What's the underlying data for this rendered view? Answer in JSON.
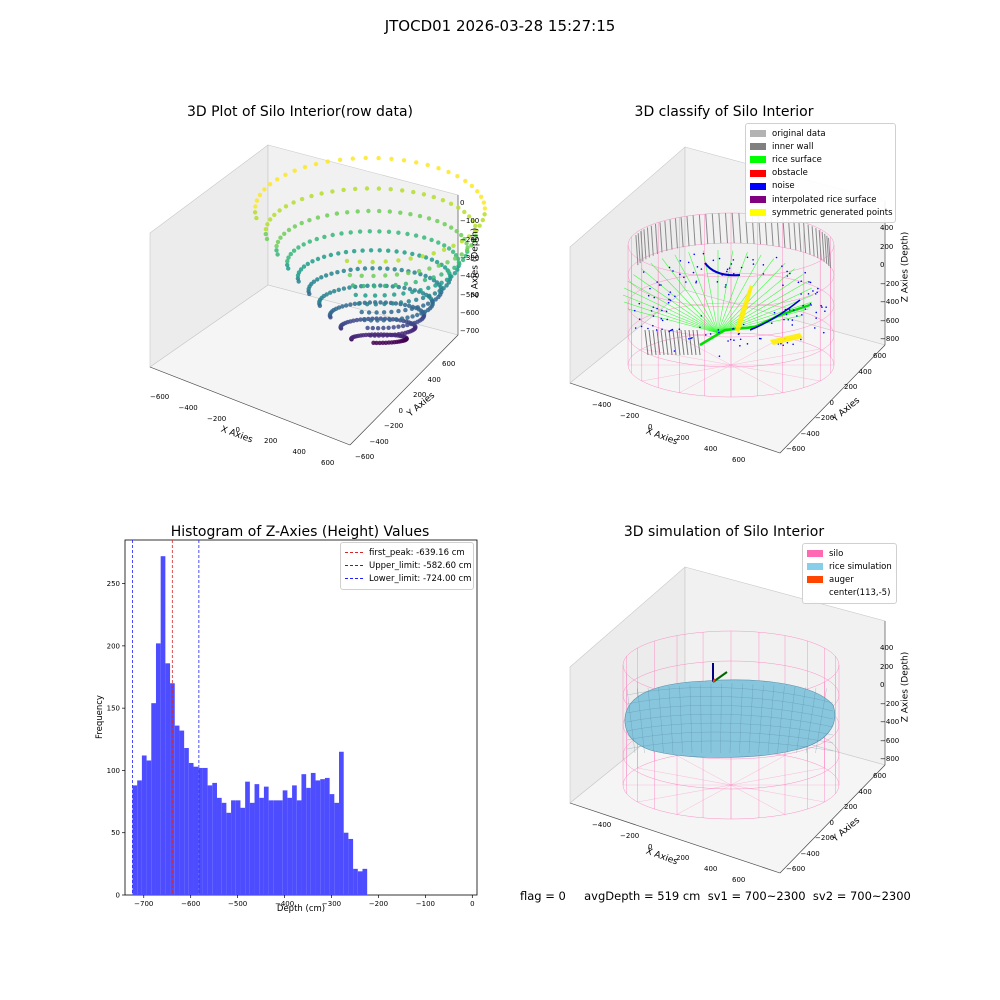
{
  "suptitle": "JTOCD01 2026-03-28 15:27:15",
  "colors": {
    "hist_bar": "#4d4dff",
    "first_peak": "#d62728",
    "limits": "#1f1fff",
    "silo_wire": "#ff77bb",
    "rice": "#87c6dd"
  },
  "plot1": {
    "title": "3D Plot of Silo Interior(row data)",
    "xlabel": "X Axies",
    "ylabel": "Y Axies",
    "zlabel": "Z Axies (Depth)",
    "xticks": [
      "−600",
      "−400",
      "−200",
      "0",
      "200",
      "400",
      "600"
    ],
    "yticks": [
      "600",
      "400",
      "200",
      "0",
      "−200",
      "−400",
      "−600"
    ],
    "zticks": [
      "0",
      "−100",
      "−200",
      "−300",
      "−400",
      "−500",
      "−600",
      "−700"
    ]
  },
  "plot2": {
    "title": "3D classify of Silo Interior",
    "xlabel": "X Axies",
    "ylabel": "Y Axies",
    "zlabel": "Z Axies (Depth)",
    "xticks": [
      "−400",
      "−200",
      "0",
      "200",
      "400",
      "600"
    ],
    "yticks": [
      "600",
      "400",
      "200",
      "0",
      "−200",
      "−400",
      "−600"
    ],
    "zticks": [
      "400",
      "200",
      "0",
      "−200",
      "−400",
      "−600",
      "−800"
    ],
    "legend": [
      {
        "label": "original data",
        "color": "#b3b3b3"
      },
      {
        "label": "inner wall",
        "color": "#808080"
      },
      {
        "label": "rice surface",
        "color": "#00ff00"
      },
      {
        "label": "obstacle",
        "color": "#ff0000"
      },
      {
        "label": "noise",
        "color": "#0000ff"
      },
      {
        "label": "interpolated rice surface",
        "color": "#800080"
      },
      {
        "label": "symmetric generated points",
        "color": "#ffff00"
      }
    ]
  },
  "plot4": {
    "title": "3D simulation of Silo Interior",
    "xlabel": "X Axies",
    "ylabel": "Y Axies",
    "zlabel": "Z Axies (Depth)",
    "xticks": [
      "−400",
      "−200",
      "0",
      "200",
      "400",
      "600"
    ],
    "yticks": [
      "600",
      "400",
      "200",
      "0",
      "−200",
      "−400",
      "−600"
    ],
    "zticks": [
      "400",
      "200",
      "0",
      "−200",
      "−400",
      "−600",
      "−800"
    ],
    "legend": [
      {
        "label": "silo",
        "color": "#ff69b4"
      },
      {
        "label": "rice simulation",
        "color": "#87ceeb"
      },
      {
        "label": "auger",
        "color": "#ff4500"
      },
      {
        "label": "center(113,-5)",
        "color": ""
      }
    ]
  },
  "footer": {
    "text": "flag = 0     avgDepth = 519 cm  sv1 = 700~2300  sv2 = 700~2300"
  },
  "chart_data": {
    "type": "bar",
    "title": "Histogram of Z-Axies (Height) Values",
    "xlabel": "Depth (cm)",
    "ylabel": "Frequency",
    "xlim": [
      -740,
      10
    ],
    "ylim": [
      0,
      285
    ],
    "xticks": [
      -700,
      -600,
      -500,
      -400,
      -300,
      -200,
      -100,
      0
    ],
    "yticks": [
      0,
      50,
      100,
      150,
      200,
      250
    ],
    "grid": false,
    "legend_position": "top-right",
    "bin_start": -724,
    "bin_width": 10,
    "values": [
      88,
      92,
      112,
      108,
      154,
      202,
      272,
      186,
      170,
      136,
      132,
      118,
      106,
      103,
      102,
      102,
      88,
      90,
      78,
      74,
      66,
      76,
      76,
      70,
      91,
      74,
      89,
      78,
      87,
      76,
      76,
      76,
      84,
      78,
      88,
      76,
      97,
      86,
      98,
      92,
      93,
      94,
      81,
      74,
      115,
      50,
      45,
      21,
      19,
      21
    ],
    "vlines": [
      {
        "label": "first_peak: -639.16 cm",
        "x": -639.16,
        "color": "#d62728"
      },
      {
        "label": "Upper_limit: -582.60 cm",
        "x": -582.6,
        "color": "#1f1fff"
      },
      {
        "label": "Lower_limit: -724.00 cm",
        "x": -724.0,
        "color": "#1f1fff"
      }
    ]
  }
}
